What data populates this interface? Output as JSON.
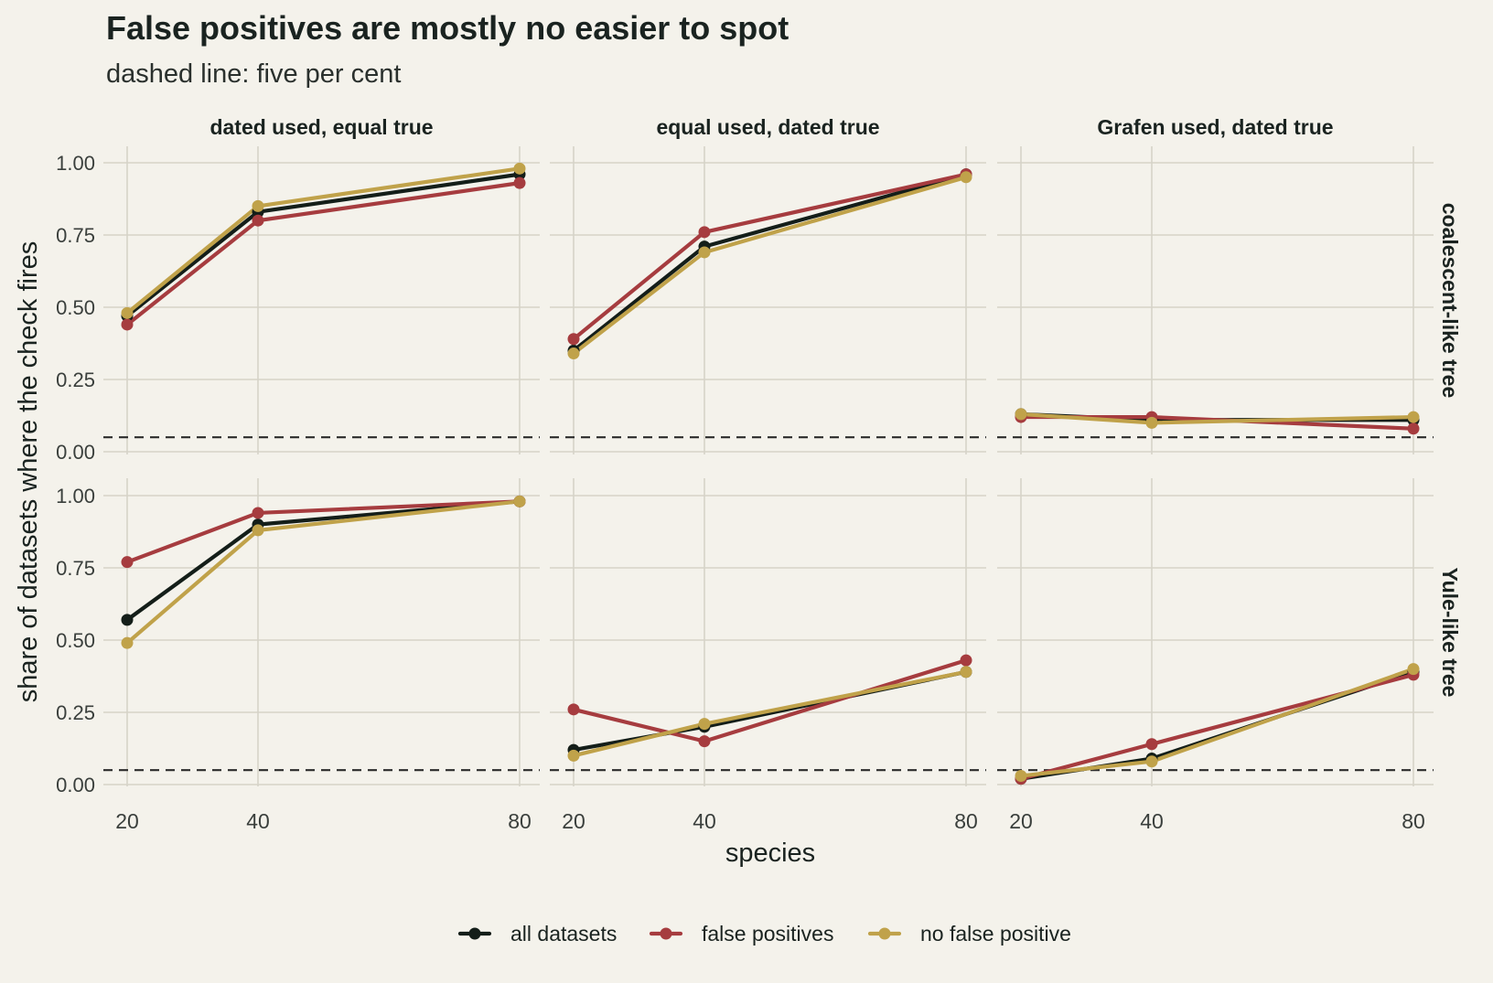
{
  "chart_data": {
    "type": "line",
    "title": "False positives are mostly no easier to spot",
    "subtitle": "dashed line: five per cent",
    "xlabel": "species",
    "ylabel": "share of datasets where the check fires",
    "x": [
      20,
      40,
      80
    ],
    "x_ticks": [
      "20",
      "40",
      "80"
    ],
    "y_ticks": [
      "0.00",
      "0.25",
      "0.50",
      "0.75",
      "1.00"
    ],
    "ylim": [
      -0.02,
      1.04
    ],
    "x_scale": "log",
    "reference_line": {
      "y": 0.05,
      "style": "dashed"
    },
    "grid": true,
    "legend_position": "bottom",
    "columns": [
      "dated used, equal true",
      "equal used, dated true",
      "Grafen used, dated true"
    ],
    "rows": [
      "coalescent-like tree",
      "Yule-like tree"
    ],
    "series_styles": [
      {
        "name": "all datasets",
        "color": "#141e19"
      },
      {
        "name": "false positives",
        "color": "#a63c3f"
      },
      {
        "name": "no false positive",
        "color": "#c0a24a"
      }
    ],
    "panels": [
      {
        "row": 0,
        "col": 0,
        "series": [
          {
            "name": "all datasets",
            "values": [
              0.47,
              0.83,
              0.96
            ]
          },
          {
            "name": "false positives",
            "values": [
              0.44,
              0.8,
              0.93
            ]
          },
          {
            "name": "no false positive",
            "values": [
              0.48,
              0.85,
              0.98
            ]
          }
        ]
      },
      {
        "row": 0,
        "col": 1,
        "series": [
          {
            "name": "all datasets",
            "values": [
              0.35,
              0.71,
              0.96
            ]
          },
          {
            "name": "false positives",
            "values": [
              0.39,
              0.76,
              0.96
            ]
          },
          {
            "name": "no false positive",
            "values": [
              0.34,
              0.69,
              0.95
            ]
          }
        ]
      },
      {
        "row": 0,
        "col": 2,
        "series": [
          {
            "name": "all datasets",
            "values": [
              0.13,
              0.11,
              0.11
            ]
          },
          {
            "name": "false positives",
            "values": [
              0.12,
              0.12,
              0.08
            ]
          },
          {
            "name": "no false positive",
            "values": [
              0.13,
              0.1,
              0.12
            ]
          }
        ]
      },
      {
        "row": 1,
        "col": 0,
        "series": [
          {
            "name": "all datasets",
            "values": [
              0.57,
              0.9,
              0.98
            ]
          },
          {
            "name": "false positives",
            "values": [
              0.77,
              0.94,
              0.98
            ]
          },
          {
            "name": "no false positive",
            "values": [
              0.49,
              0.88,
              0.98
            ]
          }
        ]
      },
      {
        "row": 1,
        "col": 1,
        "series": [
          {
            "name": "all datasets",
            "values": [
              0.12,
              0.2,
              0.39
            ]
          },
          {
            "name": "false positives",
            "values": [
              0.26,
              0.15,
              0.43
            ]
          },
          {
            "name": "no false positive",
            "values": [
              0.1,
              0.21,
              0.39
            ]
          }
        ]
      },
      {
        "row": 1,
        "col": 2,
        "series": [
          {
            "name": "all datasets",
            "values": [
              0.02,
              0.09,
              0.39
            ]
          },
          {
            "name": "false positives",
            "values": [
              0.02,
              0.14,
              0.38
            ]
          },
          {
            "name": "no false positive",
            "values": [
              0.03,
              0.08,
              0.4
            ]
          }
        ]
      }
    ]
  }
}
